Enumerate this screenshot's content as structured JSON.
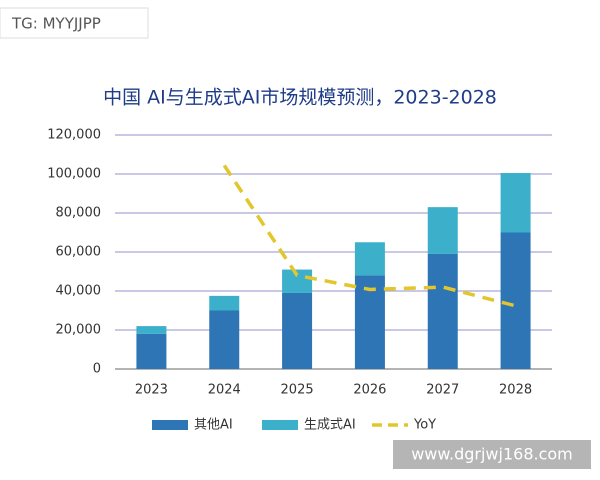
{
  "chart_data": {
    "type": "bar",
    "stacked": true,
    "title": "中国 AI与生成式AI市场规模预测，2023-2028",
    "categories": [
      "2023",
      "2024",
      "2025",
      "2026",
      "2027",
      "2028"
    ],
    "series": [
      {
        "name": "其他AI",
        "color": "#2e75b6",
        "values": [
          18000,
          30000,
          39000,
          48000,
          59000,
          70000
        ]
      },
      {
        "name": "生成式AI",
        "color": "#3cb0cb",
        "values": [
          4000,
          7500,
          12000,
          17000,
          24000,
          30500
        ]
      },
      {
        "name": "YoY",
        "color": "#e3c52c",
        "axis": "y2",
        "values": [
          null,
          87,
          40,
          34,
          35,
          27
        ]
      }
    ],
    "ylim": [
      0,
      120000
    ],
    "yticks": [
      0,
      {
        "value": 20000,
        "label": "20,000"
      },
      {
        "value": 40000,
        "label": "40,000"
      },
      {
        "value": 60000,
        "label": "60,000"
      },
      {
        "value": 80000,
        "label": "80,000"
      },
      {
        "value": 100000,
        "label": "100,000"
      },
      {
        "value": 120000,
        "label": "120,000"
      }
    ],
    "y2lim": [
      0,
      100
    ],
    "grid": true,
    "legend": "bottom"
  },
  "watermarks": [
    "TG: MYYJJPP",
    "www.dgrjwj168.com"
  ]
}
